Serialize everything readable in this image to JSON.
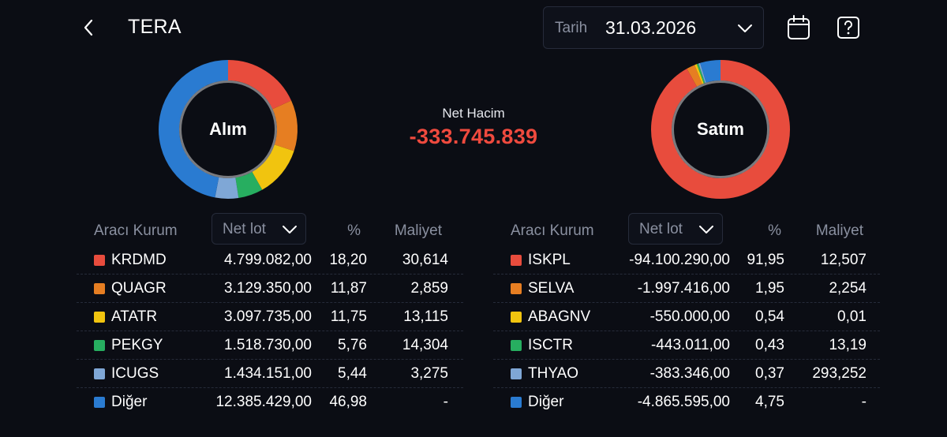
{
  "header": {
    "title": "TERA",
    "date_label": "Tarih",
    "date_value": "31.03.2026"
  },
  "summary": {
    "buy_label": "Alım",
    "sell_label": "Satım",
    "net_label": "Net Hacim",
    "net_value": "-333.745.839"
  },
  "colors": {
    "c1": "#e84c3d",
    "c2": "#e67e22",
    "c3": "#f1c40f",
    "c4": "#27ae60",
    "c5": "#7fa7d6",
    "c6": "#2a7bd1",
    "negative": "#ef4a3e"
  },
  "buy": {
    "col_broker": "Aracı Kurum",
    "col_select": "Net lot",
    "col_pct": "%",
    "col_cost": "Maliyet",
    "rows": [
      {
        "name": "KRDMD",
        "lot": "4.799.082,00",
        "pct": "18,20",
        "cost": "30,614",
        "color": "#e84c3d",
        "share": 18.2
      },
      {
        "name": "QUAGR",
        "lot": "3.129.350,00",
        "pct": "11,87",
        "cost": "2,859",
        "color": "#e67e22",
        "share": 11.87
      },
      {
        "name": "ATATR",
        "lot": "3.097.735,00",
        "pct": "11,75",
        "cost": "13,115",
        "color": "#f1c40f",
        "share": 11.75
      },
      {
        "name": "PEKGY",
        "lot": "1.518.730,00",
        "pct": "5,76",
        "cost": "14,304",
        "color": "#27ae60",
        "share": 5.76
      },
      {
        "name": "ICUGS",
        "lot": "1.434.151,00",
        "pct": "5,44",
        "cost": "3,275",
        "color": "#7fa7d6",
        "share": 5.44
      },
      {
        "name": "Diğer",
        "lot": "12.385.429,00",
        "pct": "46,98",
        "cost": "-",
        "color": "#2a7bd1",
        "share": 46.98
      }
    ]
  },
  "sell": {
    "col_broker": "Aracı Kurum",
    "col_select": "Net lot",
    "col_pct": "%",
    "col_cost": "Maliyet",
    "rows": [
      {
        "name": "ISKPL",
        "lot": "-94.100.290,00",
        "pct": "91,95",
        "cost": "12,507",
        "color": "#e84c3d",
        "share": 91.95
      },
      {
        "name": "SELVA",
        "lot": "-1.997.416,00",
        "pct": "1,95",
        "cost": "2,254",
        "color": "#e67e22",
        "share": 1.95
      },
      {
        "name": "ABAGNV",
        "lot": "-550.000,00",
        "pct": "0,54",
        "cost": "0,01",
        "color": "#f1c40f",
        "share": 0.54
      },
      {
        "name": "ISCTR",
        "lot": "-443.011,00",
        "pct": "0,43",
        "cost": "13,19",
        "color": "#27ae60",
        "share": 0.43
      },
      {
        "name": "THYAO",
        "lot": "-383.346,00",
        "pct": "0,37",
        "cost": "293,252",
        "color": "#7fa7d6",
        "share": 0.37
      },
      {
        "name": "Diğer",
        "lot": "-4.865.595,00",
        "pct": "4,75",
        "cost": "-",
        "color": "#2a7bd1",
        "share": 4.75
      }
    ]
  }
}
